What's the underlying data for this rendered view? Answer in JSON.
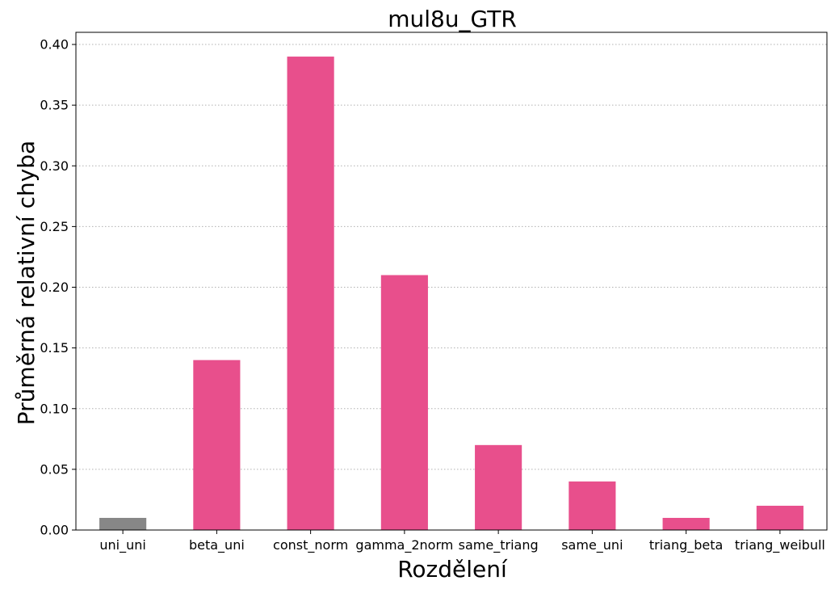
{
  "chart_data": {
    "type": "bar",
    "title": "mul8u_GTR",
    "xlabel": "Rozdělení",
    "ylabel": "Průměrná relativní chyba",
    "categories": [
      "uni_uni",
      "beta_uni",
      "const_norm",
      "gamma_2norm",
      "same_triang",
      "same_uni",
      "triang_beta",
      "triang_weibull"
    ],
    "values": [
      0.01,
      0.14,
      0.39,
      0.21,
      0.07,
      0.04,
      0.01,
      0.02
    ],
    "bar_colors": [
      "#878787",
      "#e84f8c",
      "#e84f8c",
      "#e84f8c",
      "#e84f8c",
      "#e84f8c",
      "#e84f8c",
      "#e84f8c"
    ],
    "ylim": [
      0,
      0.41
    ],
    "yticks": [
      "0.00",
      "0.05",
      "0.10",
      "0.15",
      "0.20",
      "0.25",
      "0.30",
      "0.35",
      "0.40"
    ],
    "grid": "horizontal dotted",
    "grid_color": "#b0b0b0"
  }
}
